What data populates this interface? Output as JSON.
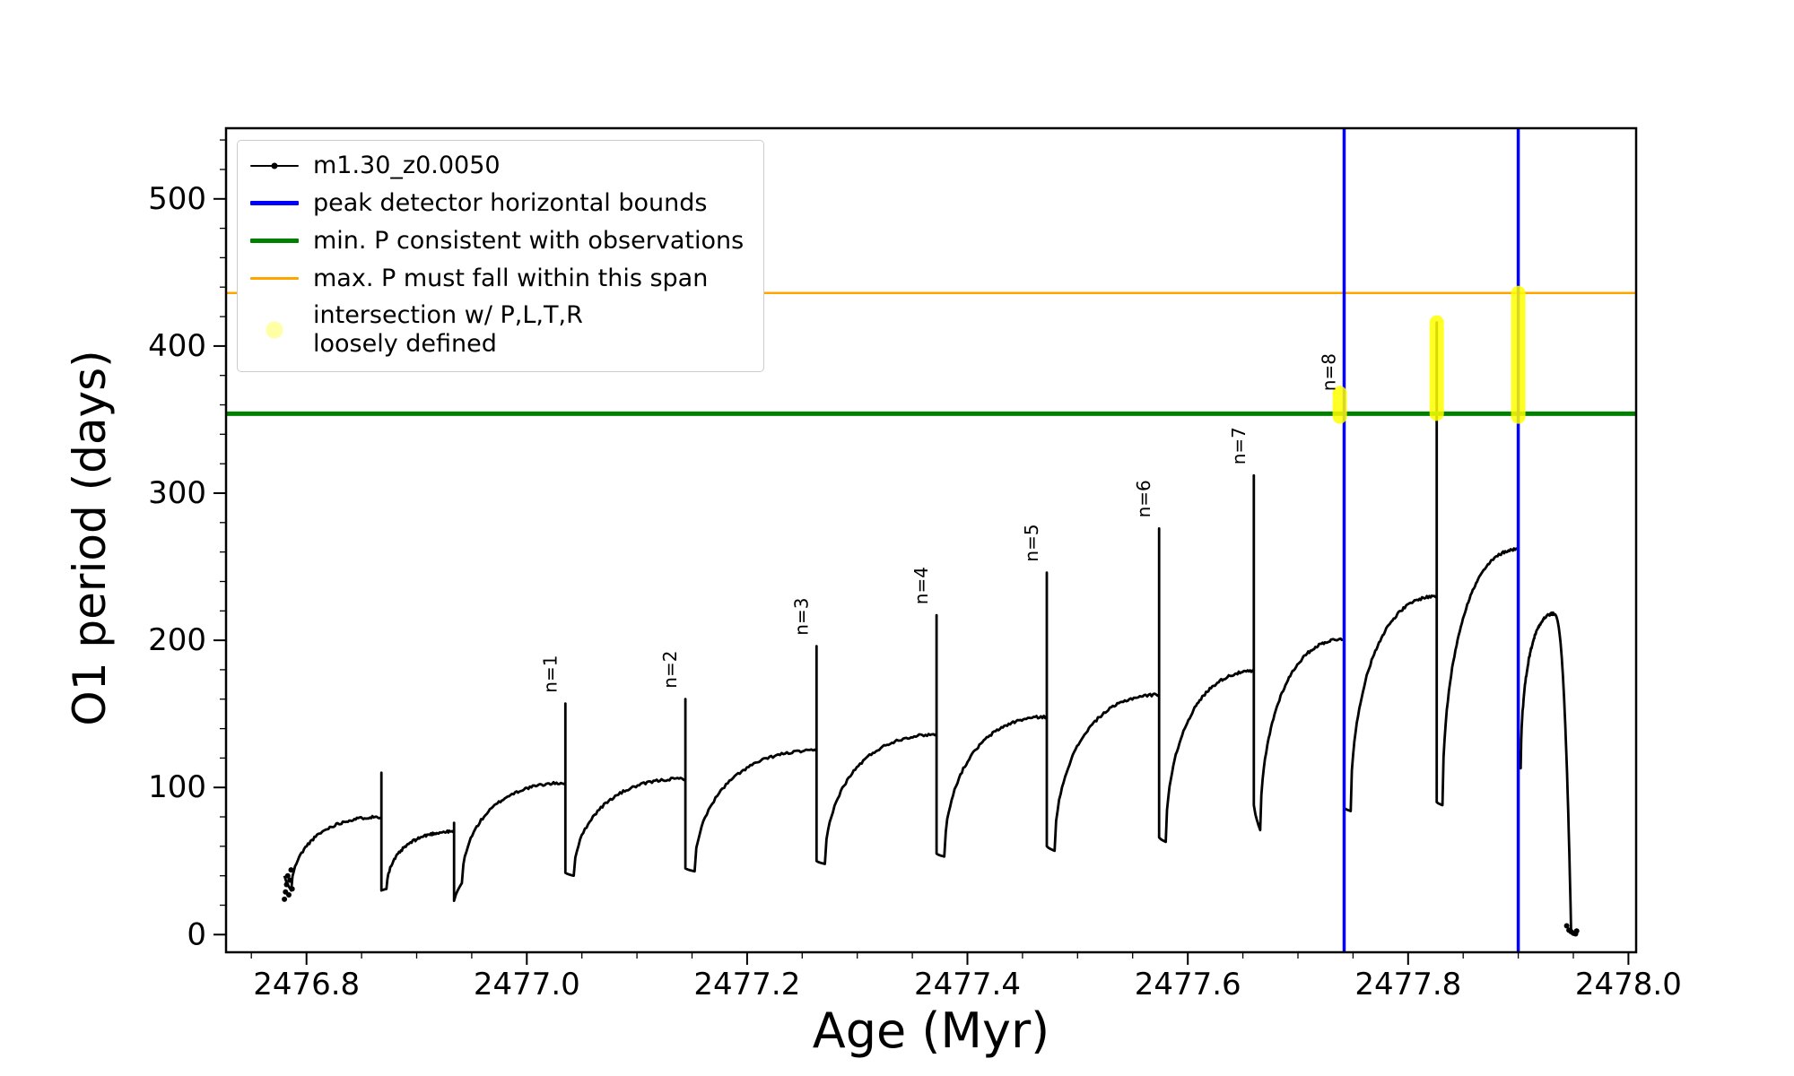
{
  "chart_data": {
    "type": "line",
    "title": "",
    "xlabel": "Age (Myr)",
    "ylabel": "O1 period (days)",
    "xlim": [
      2476.727,
      2478.007
    ],
    "ylim": [
      -12,
      548
    ],
    "xticks": [
      2476.8,
      2477.0,
      2477.2,
      2477.4,
      2477.6,
      2477.8,
      2478.0
    ],
    "xtick_labels": [
      "2476.8",
      "2477.0",
      "2477.2",
      "2477.4",
      "2477.6",
      "2477.8",
      "2478.0"
    ],
    "yticks": [
      0,
      100,
      200,
      300,
      400,
      500
    ],
    "ytick_labels": [
      "0",
      "100",
      "200",
      "300",
      "400",
      "500"
    ],
    "x_minor_step": 0.05,
    "y_minor_step": 20,
    "grid": false,
    "legend_position": "upper-left",
    "series_label": "m1.30_z0.0050",
    "curve": {
      "color": "#000000",
      "cycles": [
        {
          "start": 2476.78,
          "end": 2476.868,
          "entry": 40,
          "min": 30,
          "peak": 80,
          "spike_top": 110,
          "label": null
        },
        {
          "start": 2476.868,
          "end": 2476.934,
          "entry": 30,
          "min": 31,
          "peak": 70,
          "spike_top": 76,
          "label": null
        },
        {
          "start": 2476.934,
          "end": 2477.035,
          "entry": 23,
          "min": 35,
          "peak": 103,
          "spike_top": 157,
          "label": "n=1"
        },
        {
          "start": 2477.035,
          "end": 2477.144,
          "entry": 42,
          "min": 40,
          "peak": 106,
          "spike_top": 160,
          "label": "n=2"
        },
        {
          "start": 2477.144,
          "end": 2477.263,
          "entry": 45,
          "min": 43,
          "peak": 125,
          "spike_top": 196,
          "label": "n=3"
        },
        {
          "start": 2477.263,
          "end": 2477.372,
          "entry": 50,
          "min": 48,
          "peak": 136,
          "spike_top": 217,
          "label": "n=4"
        },
        {
          "start": 2477.372,
          "end": 2477.472,
          "entry": 55,
          "min": 53,
          "peak": 148,
          "spike_top": 246,
          "label": "n=5"
        },
        {
          "start": 2477.472,
          "end": 2477.574,
          "entry": 60,
          "min": 57,
          "peak": 163,
          "spike_top": 276,
          "label": "n=6"
        },
        {
          "start": 2477.574,
          "end": 2477.66,
          "entry": 66,
          "min": 63,
          "peak": 179,
          "spike_top": 312,
          "label": "n=7"
        },
        {
          "start": 2477.66,
          "end": 2477.742,
          "entry": 88,
          "min": 71,
          "peak": 201,
          "spike_top": 362,
          "label": "n=8"
        },
        {
          "start": 2477.742,
          "end": 2477.826,
          "entry": 86,
          "min": 84,
          "peak": 230,
          "spike_top": 416,
          "label": null
        },
        {
          "start": 2477.826,
          "end": 2477.9,
          "entry": 90,
          "min": 88,
          "peak": 262,
          "spike_top": 436,
          "label": null
        },
        {
          "start": 2477.9,
          "peak_at": 2477.932,
          "end": 2477.948,
          "entry": 126,
          "min": 113,
          "peak": 218,
          "end_val": 2,
          "terminal": true,
          "spike_top": null,
          "label": null
        }
      ],
      "start_cluster": [
        [
          2476.78,
          24
        ],
        [
          2476.781,
          29
        ],
        [
          2476.782,
          34
        ],
        [
          2476.783,
          40
        ],
        [
          2476.784,
          27
        ],
        [
          2476.785,
          37
        ],
        [
          2476.786,
          44
        ],
        [
          2476.787,
          31
        ]
      ],
      "end_cluster": [
        [
          2477.944,
          6
        ],
        [
          2477.946,
          3
        ],
        [
          2477.948,
          2
        ],
        [
          2477.95,
          1
        ],
        [
          2477.952,
          0.5
        ],
        [
          2477.953,
          2.5
        ]
      ]
    },
    "hlines": [
      {
        "y": 354,
        "color": "#008000",
        "lw": 5,
        "name": "min-period-line"
      },
      {
        "y": 436,
        "color": "#ffa500",
        "lw": 2.5,
        "name": "max-period-line"
      }
    ],
    "vlines": [
      {
        "x": 2477.742,
        "color": "#0000ff",
        "lw": 3.5,
        "name": "peak-bound-line-left"
      },
      {
        "x": 2477.9,
        "color": "#0000ff",
        "lw": 3.5,
        "name": "peak-bound-line-right"
      }
    ],
    "highlights": [
      {
        "x": 2477.738,
        "y1": 352,
        "y2": 368,
        "color": "#ffff00",
        "alpha": 0.85
      },
      {
        "x": 2477.826,
        "y1": 354,
        "y2": 416,
        "color": "#ffff00",
        "alpha": 0.85
      },
      {
        "x": 2477.9,
        "y1": 352,
        "y2": 436,
        "color": "#ffff00",
        "alpha": 0.85
      }
    ],
    "legend": {
      "entries": [
        {
          "label": "m1.30_z0.0050",
          "color": "#000000",
          "lw": 2,
          "kind": "line-marker"
        },
        {
          "label": "peak detector horizontal bounds",
          "color": "#0000ff",
          "lw": 5,
          "kind": "line"
        },
        {
          "label": "min. P consistent with observations",
          "color": "#008000",
          "lw": 5,
          "kind": "line"
        },
        {
          "label": "max. P must fall within this span",
          "color": "#ffa500",
          "lw": 2.5,
          "kind": "line"
        },
        {
          "label": "intersection w/ P,L,T,R\nloosely defined",
          "color": "#ffff00",
          "alpha": 0.35,
          "kind": "marker"
        }
      ]
    }
  }
}
